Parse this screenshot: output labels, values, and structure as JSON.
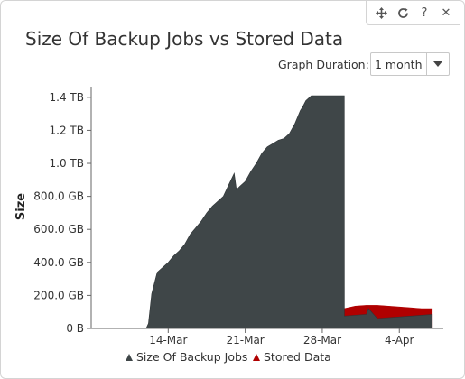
{
  "title": "Size Of Backup Jobs vs Stored Data",
  "toolbar": {
    "move_icon": "move-icon",
    "refresh_icon": "refresh-icon",
    "help_label": "?",
    "close_label": "✕"
  },
  "duration": {
    "label": "Graph Duration:",
    "selected": "1 month"
  },
  "colors": {
    "backup": "#3f4648",
    "stored": "#b00000"
  },
  "chart_data": {
    "type": "area",
    "title": "",
    "ylabel": "Size",
    "xlabel": "",
    "y_ticks": [
      "0 B",
      "200.0 GB",
      "400.0 GB",
      "600.0 GB",
      "800.0 GB",
      "1.0 TB",
      "1.2 TB",
      "1.4 TB"
    ],
    "x_ticks": [
      "14-Mar",
      "21-Mar",
      "28-Mar",
      "4-Apr"
    ],
    "ylim_gb": [
      0,
      1400
    ],
    "legend": [
      "Size Of Backup Jobs",
      "Stored Data"
    ],
    "legend_position": "bottom",
    "series": [
      {
        "name": "Size Of Backup Jobs",
        "x_day": [
          8,
          12,
          12.2,
          12.5,
          13,
          13.5,
          14,
          14.5,
          15,
          15.5,
          16,
          16.5,
          17,
          17.5,
          18,
          18.5,
          19,
          19.5,
          20,
          20.2,
          20.5,
          21,
          21.5,
          22,
          22.5,
          23,
          23.5,
          24,
          24.5,
          25,
          25.5,
          26,
          26.2,
          26.5,
          27,
          27.5,
          28,
          30,
          30.01,
          32,
          32.2,
          33,
          34,
          35,
          36,
          37,
          38
        ],
        "y_gb": [
          0,
          0,
          30,
          210,
          340,
          370,
          400,
          440,
          470,
          510,
          570,
          610,
          650,
          700,
          740,
          770,
          800,
          870,
          940,
          840,
          860,
          890,
          950,
          1000,
          1060,
          1100,
          1120,
          1140,
          1150,
          1180,
          1240,
          1320,
          1340,
          1380,
          1410,
          1410,
          1410,
          1410,
          75,
          85,
          120,
          60,
          65,
          70,
          75,
          80,
          85
        ]
      },
      {
        "name": "Stored Data",
        "x_day": [
          30,
          31,
          32,
          33,
          34,
          35,
          36,
          37,
          38
        ],
        "y_gb": [
          120,
          135,
          140,
          140,
          135,
          130,
          125,
          120,
          120
        ]
      }
    ]
  }
}
